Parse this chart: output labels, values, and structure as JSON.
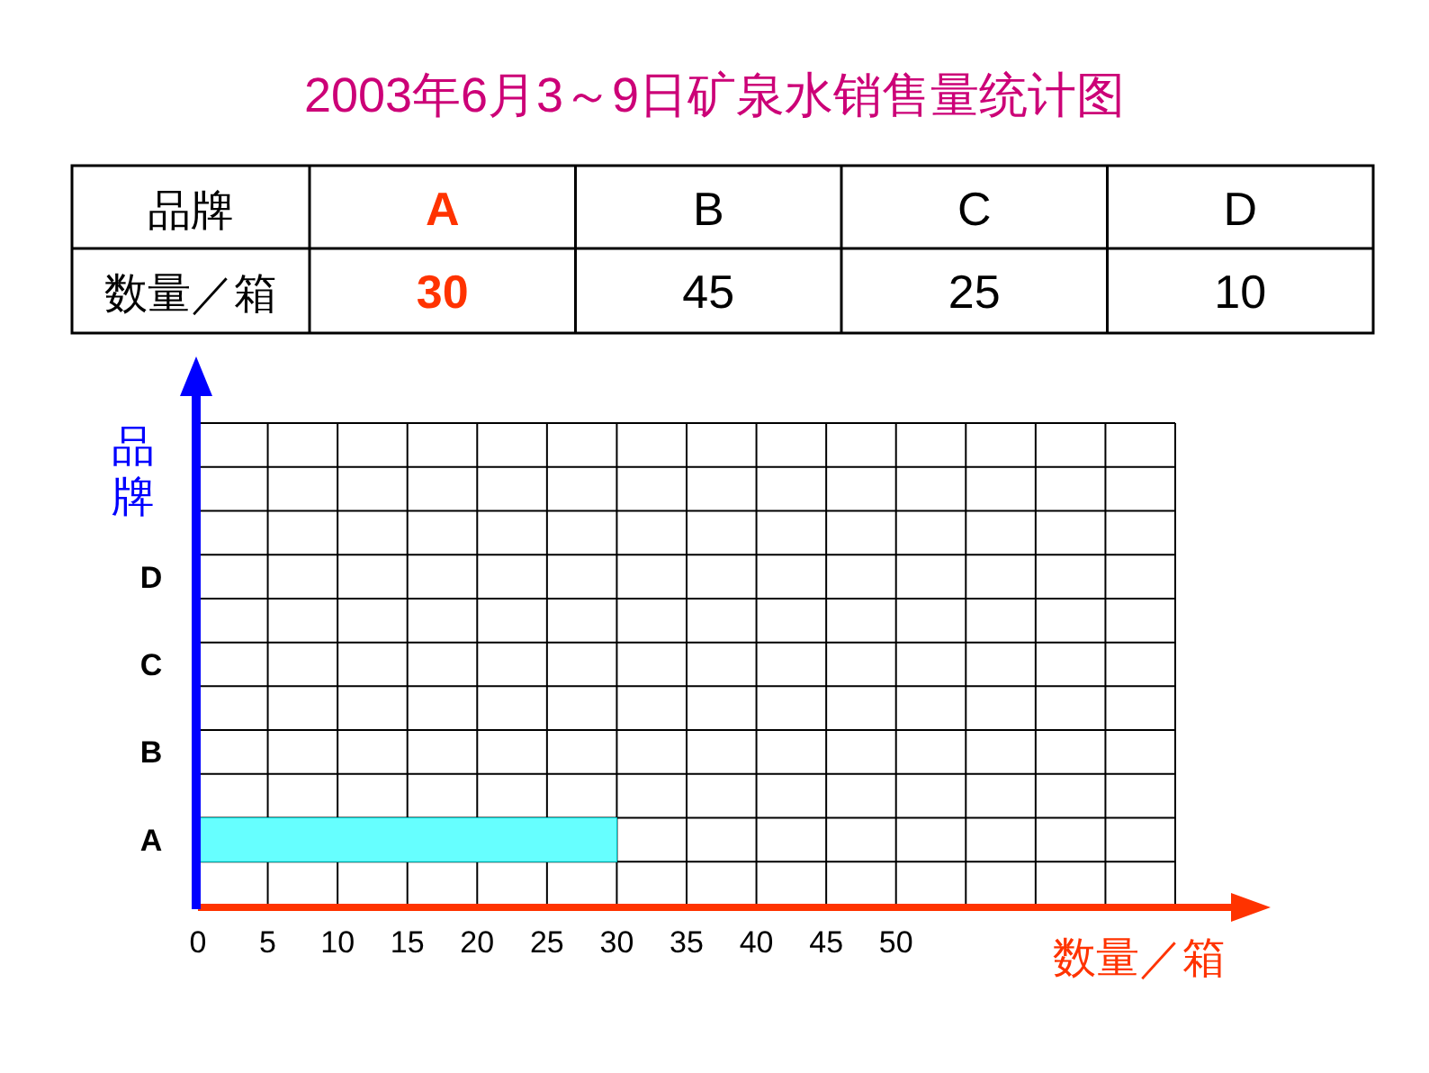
{
  "chart_data": [
    {
      "type": "other",
      "title": "2003年6月3～9日矿泉水销售量统计图",
      "annotations": [
        "品牌",
        "数量／箱"
      ],
      "categories": [
        "A",
        "B",
        "C",
        "D"
      ],
      "values": [
        30,
        45,
        25,
        10
      ],
      "colors": [
        "#ff3300",
        "#000000",
        "#000000",
        "#000000"
      ],
      "data_labels": true
    },
    {
      "type": "bar",
      "orientation": "horizontal",
      "categories": [
        "D",
        "C",
        "B",
        "A"
      ],
      "values": [
        null,
        null,
        null,
        30
      ],
      "color": "#66ffff",
      "xlim": [
        0,
        70
      ],
      "xticks": [
        0,
        5,
        10,
        15,
        20,
        25,
        30,
        35,
        40,
        45,
        50,
        {
          "value": 55,
          "label": null
        },
        {
          "value": 60,
          "label": null
        },
        {
          "value": 65,
          "label": null
        },
        {
          "value": 70,
          "label": null
        }
      ],
      "xlabel": "数量／箱",
      "ylabel": "品牌",
      "grid": true
    }
  ]
}
